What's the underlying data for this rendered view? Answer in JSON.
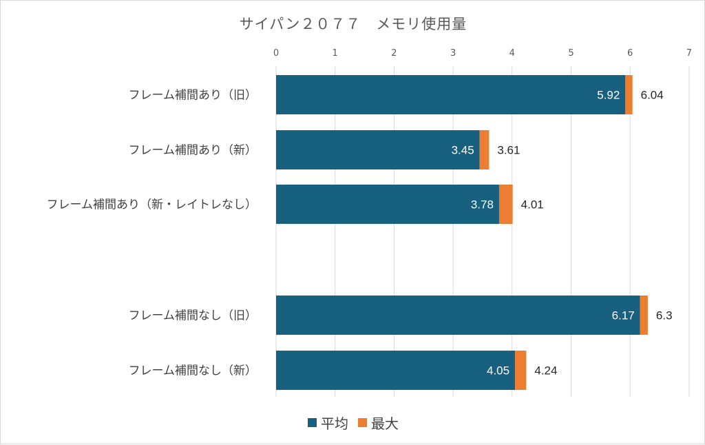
{
  "chart_data": {
    "type": "bar",
    "orientation": "horizontal",
    "title": "サイパン２０７７　メモリ使用量",
    "categories": [
      "フレーム補間あり（旧）",
      "フレーム補間あり（新）",
      "フレーム補間あり（新・レイトレなし）",
      "",
      "フレーム補間なし（旧）",
      "フレーム補間なし（新）"
    ],
    "series": [
      {
        "name": "平均",
        "values": [
          5.92,
          3.45,
          3.78,
          null,
          6.17,
          4.05
        ],
        "color": "#17607f"
      },
      {
        "name": "最大",
        "values": [
          6.04,
          3.61,
          4.01,
          null,
          6.3,
          4.24
        ],
        "color": "#ed7d31"
      }
    ],
    "xlim": [
      0,
      7
    ],
    "xticks": [
      "0",
      "1",
      "2",
      "3",
      "4",
      "5",
      "6",
      "7"
    ],
    "grid": true,
    "legend_position": "bottom"
  }
}
